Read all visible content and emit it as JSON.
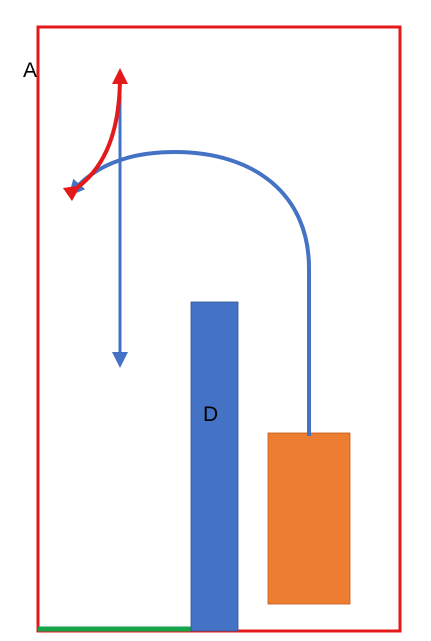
{
  "labels": {
    "corner": "A",
    "pillar": "D"
  },
  "colors": {
    "frame": "#e41a1a",
    "ground_strip": "#16a34a",
    "pillar": "#4472c4",
    "box": "#ed7d31",
    "box_border": "#c05a17",
    "arc_path": "#4472c4",
    "vertical_arrow": "#4472c4",
    "curved_arrow": "#e41a1a"
  },
  "icons": {
    "vertical_arrow": "double-arrow-icon",
    "curved_arrow": "curved-double-arrow-icon",
    "arc_path": "arc-arrow-icon"
  }
}
